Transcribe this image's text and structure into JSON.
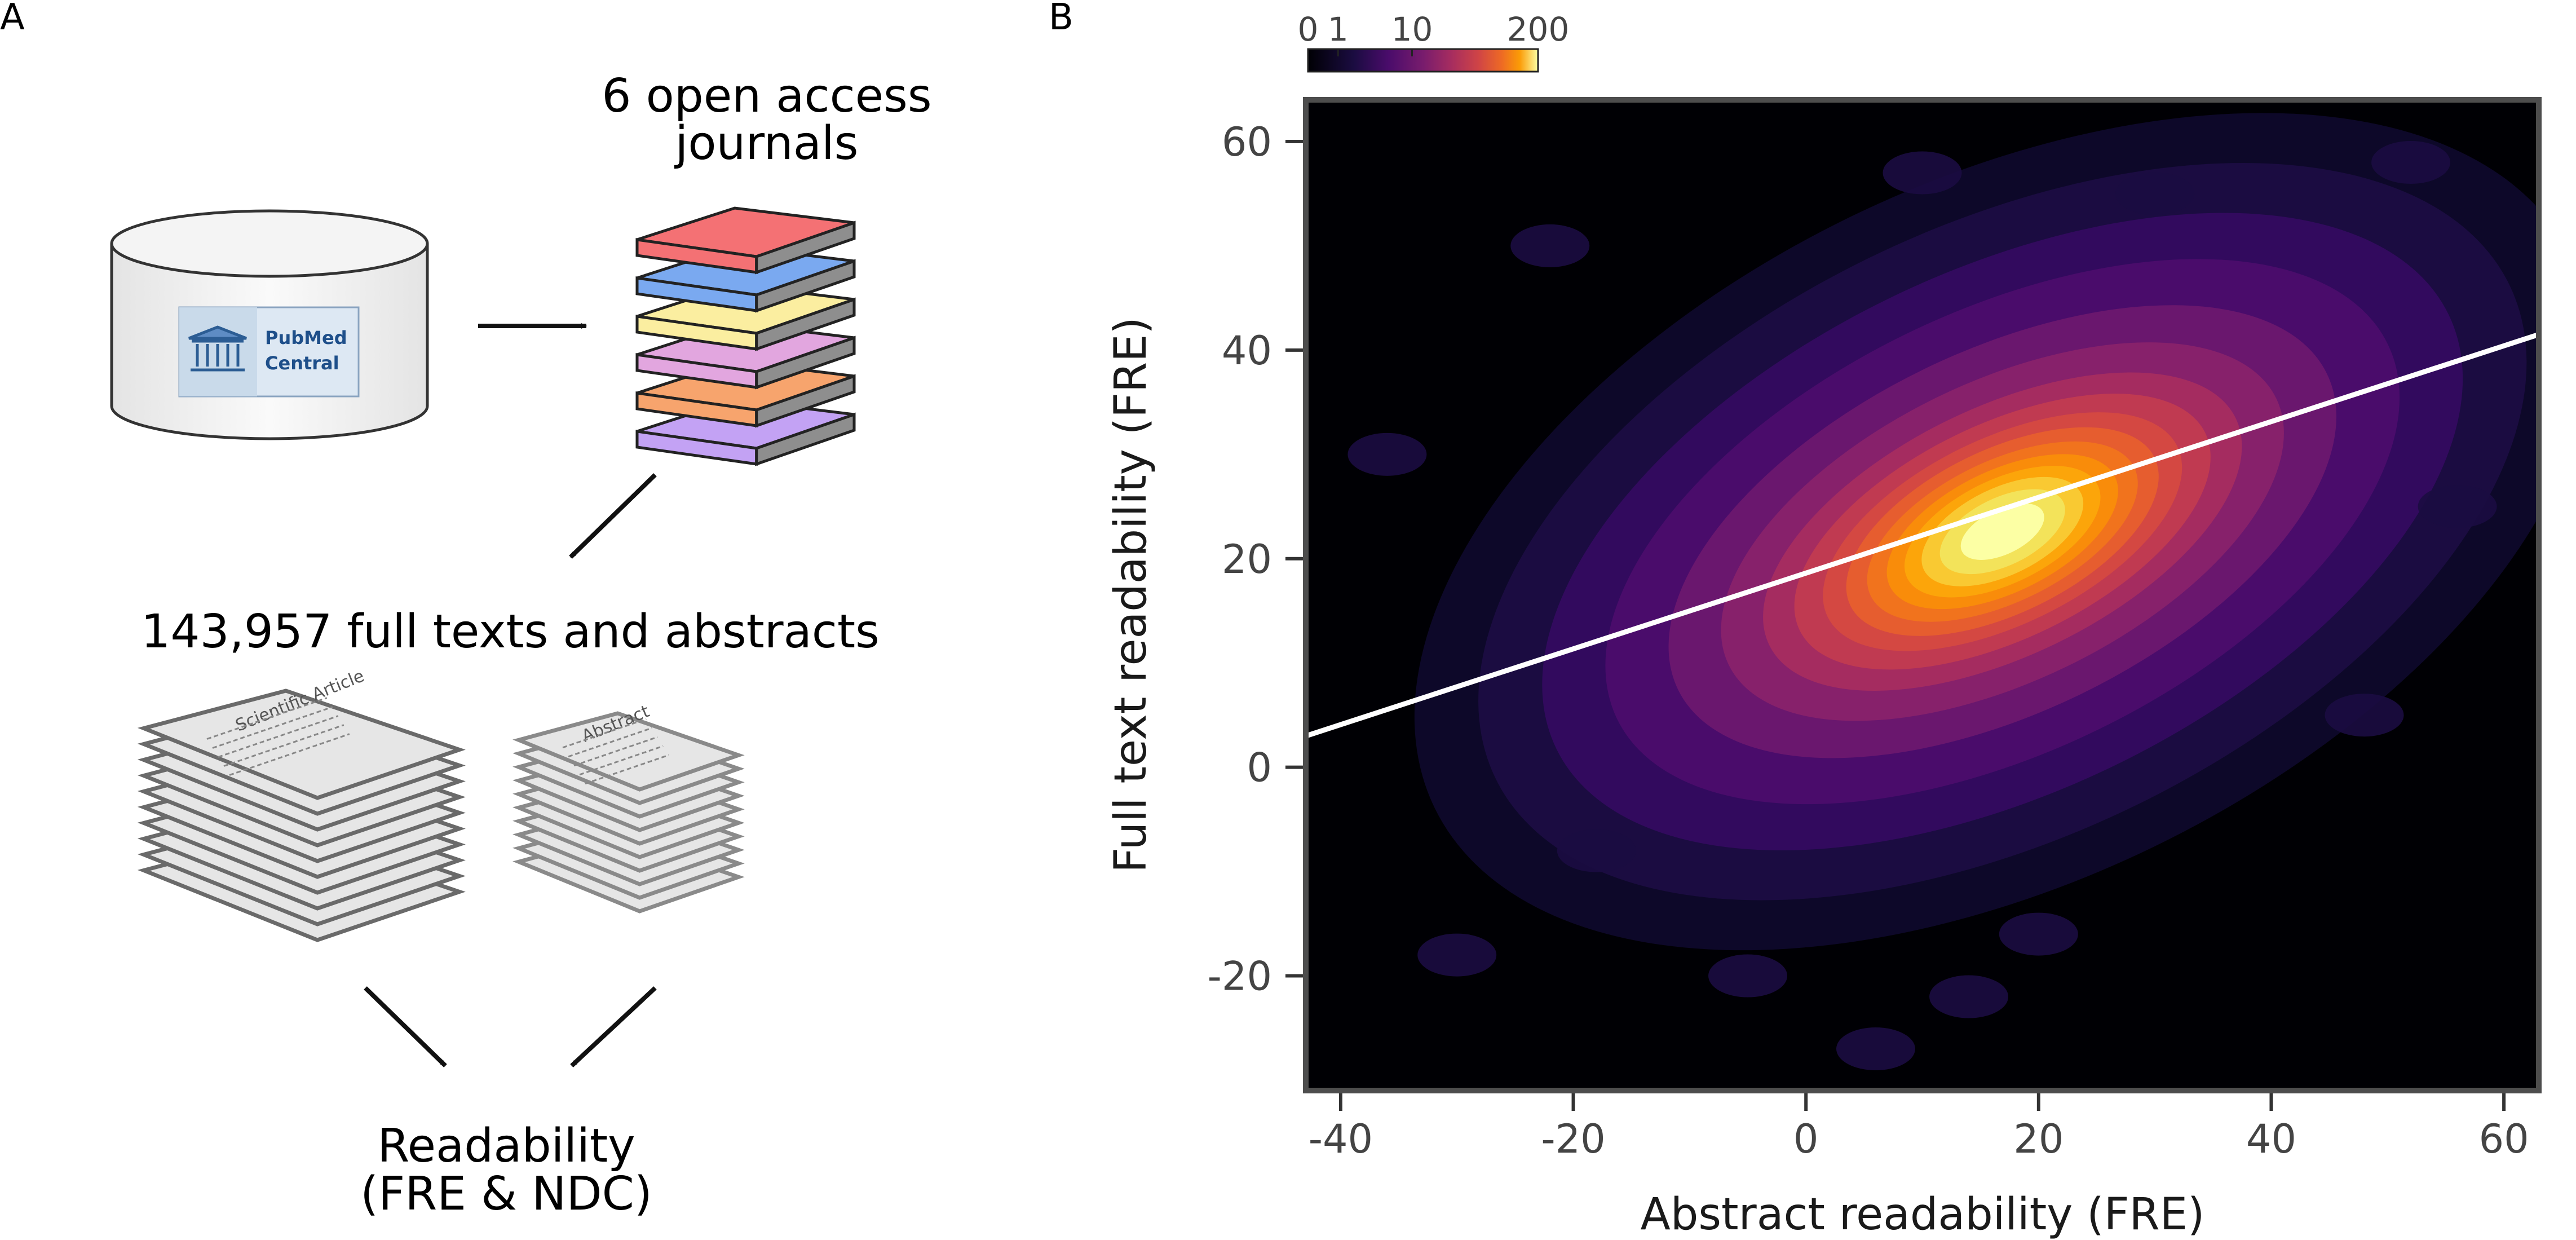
{
  "panel_a": {
    "label": "A",
    "database_logo_text": [
      "PubMed",
      "Central"
    ],
    "journals_caption_lines": [
      "6 open access",
      "journals"
    ],
    "fulltexts_caption": "143,957 full texts and abstracts",
    "article_stack_heading": "Scientific Article",
    "abstract_stack_heading": "Abstract",
    "output_caption_lines": [
      "Readability",
      "(FRE & NDC)"
    ],
    "journal_colors": [
      "#f47174",
      "#7aa9f0",
      "#fbeea0",
      "#e2a6df",
      "#f7a46d",
      "#c3a2f4"
    ],
    "paper_color": "#e6e6e6"
  },
  "panel_b": {
    "label": "B"
  },
  "colorbar": {
    "ticks": [
      0,
      1,
      10,
      200
    ],
    "tick_labels": [
      "0",
      "1",
      "10",
      "200"
    ],
    "colormap": "inferno",
    "scale": "symlog"
  },
  "chart_data": {
    "type": "heatmap",
    "description_kind": "2D density (KDE) of abstract vs full text readability with linear fit",
    "xlabel": "Abstract readability (FRE)",
    "ylabel": "Full text readability (FRE)",
    "xlim": [
      -43,
      63
    ],
    "ylim": [
      -31,
      64
    ],
    "x_ticks": [
      -40,
      -20,
      0,
      20,
      40,
      60
    ],
    "y_ticks": [
      -20,
      0,
      20,
      40,
      60
    ],
    "x_tick_labels": [
      "-40",
      "-20",
      "0",
      "20",
      "40",
      "60"
    ],
    "y_tick_labels": [
      "-20",
      "0",
      "20",
      "40",
      "60"
    ],
    "density_peak": {
      "x": 18,
      "y": 25
    },
    "density_max": 200,
    "fit_line": {
      "x": [
        -43,
        63
      ],
      "y": [
        3.0,
        41.5
      ],
      "color": "#ffffff"
    },
    "background_color": "#000004"
  }
}
